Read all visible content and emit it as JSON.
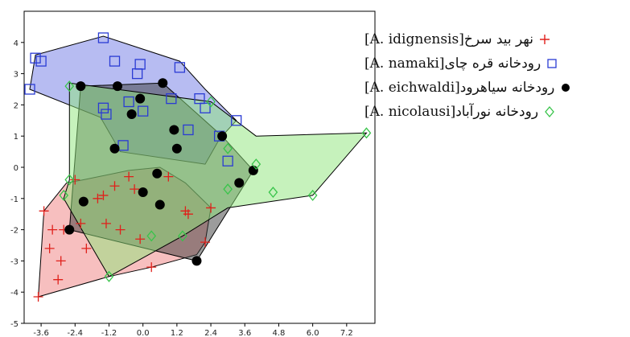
{
  "chart_data": {
    "type": "scatter",
    "xlim": [
      -4.2,
      8.2
    ],
    "ylim": [
      -5,
      5
    ],
    "xticks": [
      -3.6,
      -2.4,
      -1.2,
      0.0,
      1.2,
      2.4,
      3.6,
      4.8,
      6.0,
      7.2
    ],
    "xtick_labels": [
      "-3.6",
      "-2.4",
      "-1.2",
      "0.0",
      "1.2",
      "2.4",
      "3.6",
      "4.8",
      "6.0",
      "7.2"
    ],
    "yticks": [
      -5,
      -4,
      -3,
      -2,
      -1,
      0,
      1,
      2,
      3,
      4
    ],
    "ytick_labels": [
      "-5",
      "-4",
      "-3",
      "-2",
      "-1",
      "0",
      "1",
      "2",
      "3",
      "4"
    ],
    "grid": false,
    "legend_position": "right",
    "series": [
      {
        "name": "نهر بید سرخ[A. idignensis]",
        "marker": "plus",
        "color": "#e0201b",
        "fill": "#f08080",
        "points": [
          [
            -3.7,
            -4.15
          ],
          [
            -3.5,
            -1.4
          ],
          [
            -3.3,
            -2.6
          ],
          [
            -3.2,
            -2.0
          ],
          [
            -2.9,
            -3.0
          ],
          [
            -3.0,
            -3.6
          ],
          [
            -2.8,
            -2.0
          ],
          [
            -2.4,
            -0.4
          ],
          [
            -2.2,
            -1.8
          ],
          [
            -2.0,
            -2.6
          ],
          [
            -1.6,
            -1.0
          ],
          [
            -1.4,
            -0.9
          ],
          [
            -1.3,
            -1.8
          ],
          [
            -1.0,
            -0.6
          ],
          [
            -0.8,
            -2.0
          ],
          [
            -0.5,
            -0.3
          ],
          [
            -0.3,
            -0.7
          ],
          [
            -0.1,
            -2.3
          ],
          [
            0.3,
            -3.2
          ],
          [
            0.9,
            -0.3
          ],
          [
            1.5,
            -1.4
          ],
          [
            1.6,
            -1.5
          ],
          [
            2.2,
            -2.4
          ],
          [
            2.4,
            -1.3
          ]
        ]
      },
      {
        "name": "رودخانه قره چای[A. namaki]",
        "marker": "square",
        "color": "#2a3bd4",
        "fill": "#6f79e6",
        "points": [
          [
            -4.0,
            2.5
          ],
          [
            -3.8,
            3.5
          ],
          [
            -3.6,
            3.4
          ],
          [
            -1.4,
            4.15
          ],
          [
            -1.0,
            3.4
          ],
          [
            -0.5,
            2.1
          ],
          [
            -0.2,
            3.0
          ],
          [
            -0.1,
            3.3
          ],
          [
            1.3,
            3.2
          ],
          [
            -1.4,
            1.9
          ],
          [
            -1.3,
            1.7
          ],
          [
            -0.7,
            0.7
          ],
          [
            0.0,
            1.8
          ],
          [
            1.0,
            2.2
          ],
          [
            1.6,
            1.2
          ],
          [
            2.2,
            1.9
          ],
          [
            2.7,
            1.0
          ],
          [
            3.0,
            0.2
          ],
          [
            3.3,
            1.5
          ],
          [
            2.0,
            2.2
          ]
        ]
      },
      {
        "name": "رودخانه سیاهرود[A. eichwaldi]",
        "marker": "circle",
        "color": "#000000",
        "fill": "#3a3a3a",
        "points": [
          [
            -2.2,
            2.6
          ],
          [
            -2.6,
            -2.0
          ],
          [
            -2.1,
            -1.1
          ],
          [
            -0.9,
            2.6
          ],
          [
            -0.4,
            1.7
          ],
          [
            -1.0,
            0.6
          ],
          [
            -0.1,
            2.2
          ],
          [
            0.0,
            -0.8
          ],
          [
            0.5,
            -0.2
          ],
          [
            0.6,
            -1.2
          ],
          [
            0.7,
            2.7
          ],
          [
            1.1,
            1.2
          ],
          [
            1.2,
            0.6
          ],
          [
            1.9,
            -3.0
          ],
          [
            2.8,
            1.0
          ],
          [
            3.4,
            -0.5
          ],
          [
            3.9,
            -0.1
          ]
        ]
      },
      {
        "name": "رودخانه نورآباد[A. nicolausi]",
        "marker": "diamond",
        "color": "#38c44a",
        "fill": "#8ee67a",
        "points": [
          [
            -2.6,
            2.6
          ],
          [
            -2.6,
            -0.4
          ],
          [
            -2.8,
            -0.9
          ],
          [
            -1.2,
            -3.5
          ],
          [
            0.3,
            -2.2
          ],
          [
            1.4,
            -2.2
          ],
          [
            2.4,
            2.1
          ],
          [
            3.0,
            0.6
          ],
          [
            3.0,
            -0.7
          ],
          [
            4.0,
            0.1
          ],
          [
            4.6,
            -0.8
          ],
          [
            6.0,
            -0.9
          ],
          [
            7.9,
            1.1
          ]
        ]
      }
    ],
    "hulls": [
      {
        "series": 0,
        "points": [
          [
            -3.7,
            -4.15
          ],
          [
            -1.2,
            -3.5
          ],
          [
            0.3,
            -3.2
          ],
          [
            1.9,
            -2.8
          ],
          [
            2.2,
            -2.4
          ],
          [
            2.4,
            -1.3
          ],
          [
            1.5,
            -0.5
          ],
          [
            0.6,
            0.0
          ],
          [
            -0.5,
            -0.1
          ],
          [
            -2.1,
            -0.4
          ],
          [
            -2.7,
            -0.5
          ],
          [
            -3.5,
            -1.4
          ]
        ]
      },
      {
        "series": 1,
        "points": [
          [
            -4.0,
            2.5
          ],
          [
            -3.8,
            3.6
          ],
          [
            -1.4,
            4.2
          ],
          [
            1.3,
            3.4
          ],
          [
            2.2,
            2.5
          ],
          [
            3.3,
            1.5
          ],
          [
            2.7,
            0.9
          ],
          [
            2.2,
            0.1
          ],
          [
            -0.8,
            0.5
          ],
          [
            -1.5,
            1.6
          ],
          [
            -4.0,
            2.5
          ]
        ]
      },
      {
        "series": 2,
        "points": [
          [
            -2.2,
            2.6
          ],
          [
            0.7,
            2.7
          ],
          [
            2.8,
            1.0
          ],
          [
            3.9,
            -0.1
          ],
          [
            1.9,
            -3.0
          ],
          [
            -2.6,
            -2.0
          ]
        ]
      },
      {
        "series": 3,
        "points": [
          [
            -2.6,
            2.7
          ],
          [
            2.4,
            2.1
          ],
          [
            4.0,
            1.0
          ],
          [
            7.9,
            1.1
          ],
          [
            6.0,
            -0.9
          ],
          [
            3.0,
            -1.3
          ],
          [
            1.4,
            -2.2
          ],
          [
            -1.2,
            -3.5
          ],
          [
            -2.8,
            -1.0
          ],
          [
            -2.6,
            -0.4
          ]
        ]
      }
    ]
  }
}
